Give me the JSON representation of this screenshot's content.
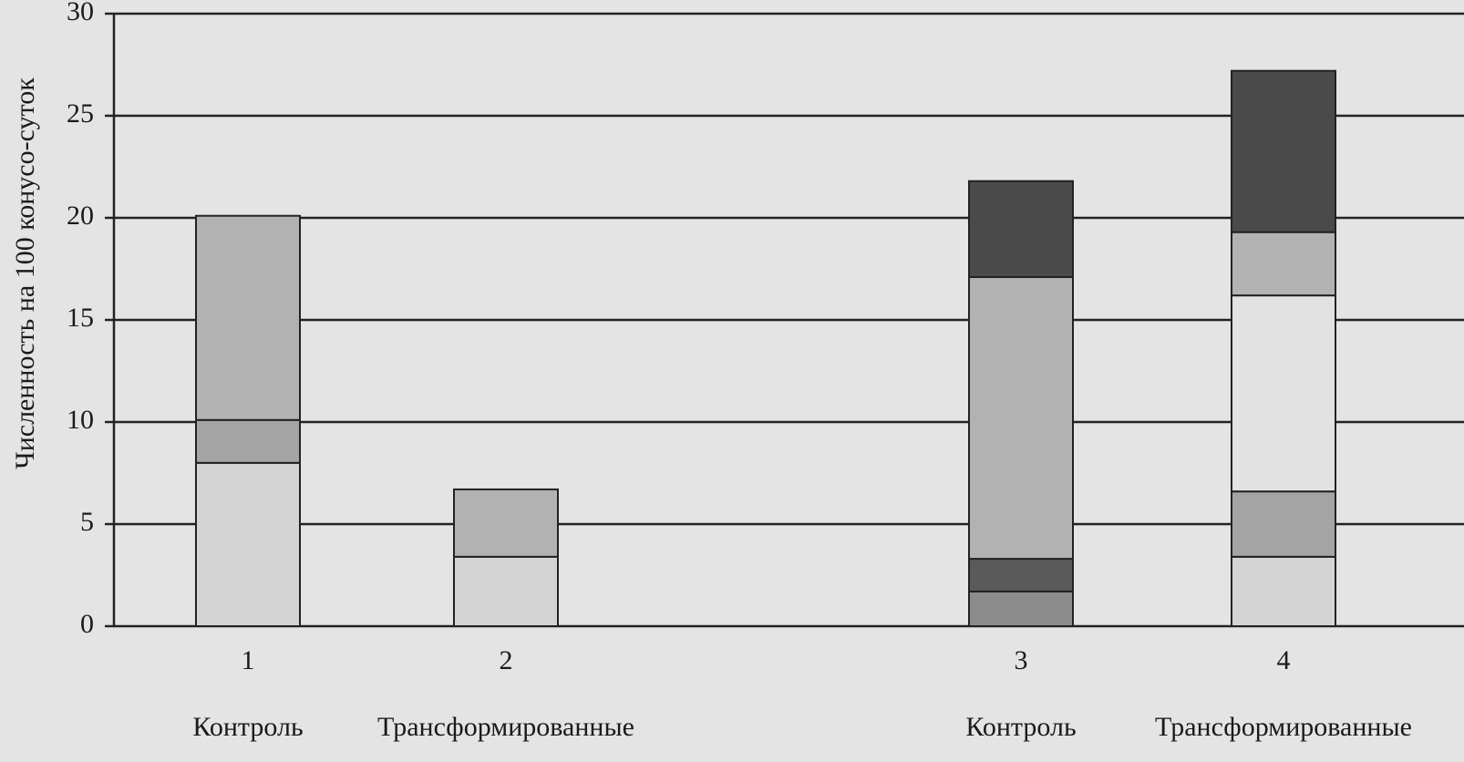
{
  "chart_data": {
    "type": "stacked-bar",
    "y_label": "Численность на 100 конусо-суток",
    "categories": [
      "1",
      "2",
      "3",
      "4"
    ],
    "group_labels": [
      "Контроль",
      "Трансформированные",
      "Контроль",
      "Трансформированные"
    ],
    "series": [
      {
        "color": "#d4d4d4",
        "values": [
          8,
          3.4,
          0,
          3.4
        ]
      },
      {
        "color": "#8c8c8c",
        "values": [
          0,
          0,
          1.7,
          0
        ]
      },
      {
        "color": "#5a5a5a",
        "values": [
          0,
          0,
          1.6,
          0
        ]
      },
      {
        "color": "#a4a4a4",
        "values": [
          2.1,
          0,
          0,
          3.2
        ]
      },
      {
        "color": "#e2e2e2",
        "values": [
          0,
          0,
          0,
          9.6
        ]
      },
      {
        "color": "#b2b2b2",
        "values": [
          10,
          3.3,
          13.8,
          3.1
        ]
      },
      {
        "color": "#4a4a4a",
        "values": [
          0,
          0,
          4.7,
          7.9
        ]
      }
    ],
    "ylim": [
      0,
      30
    ],
    "yticks": [
      0,
      5,
      10,
      15,
      20,
      25,
      30
    ],
    "grid": true
  }
}
